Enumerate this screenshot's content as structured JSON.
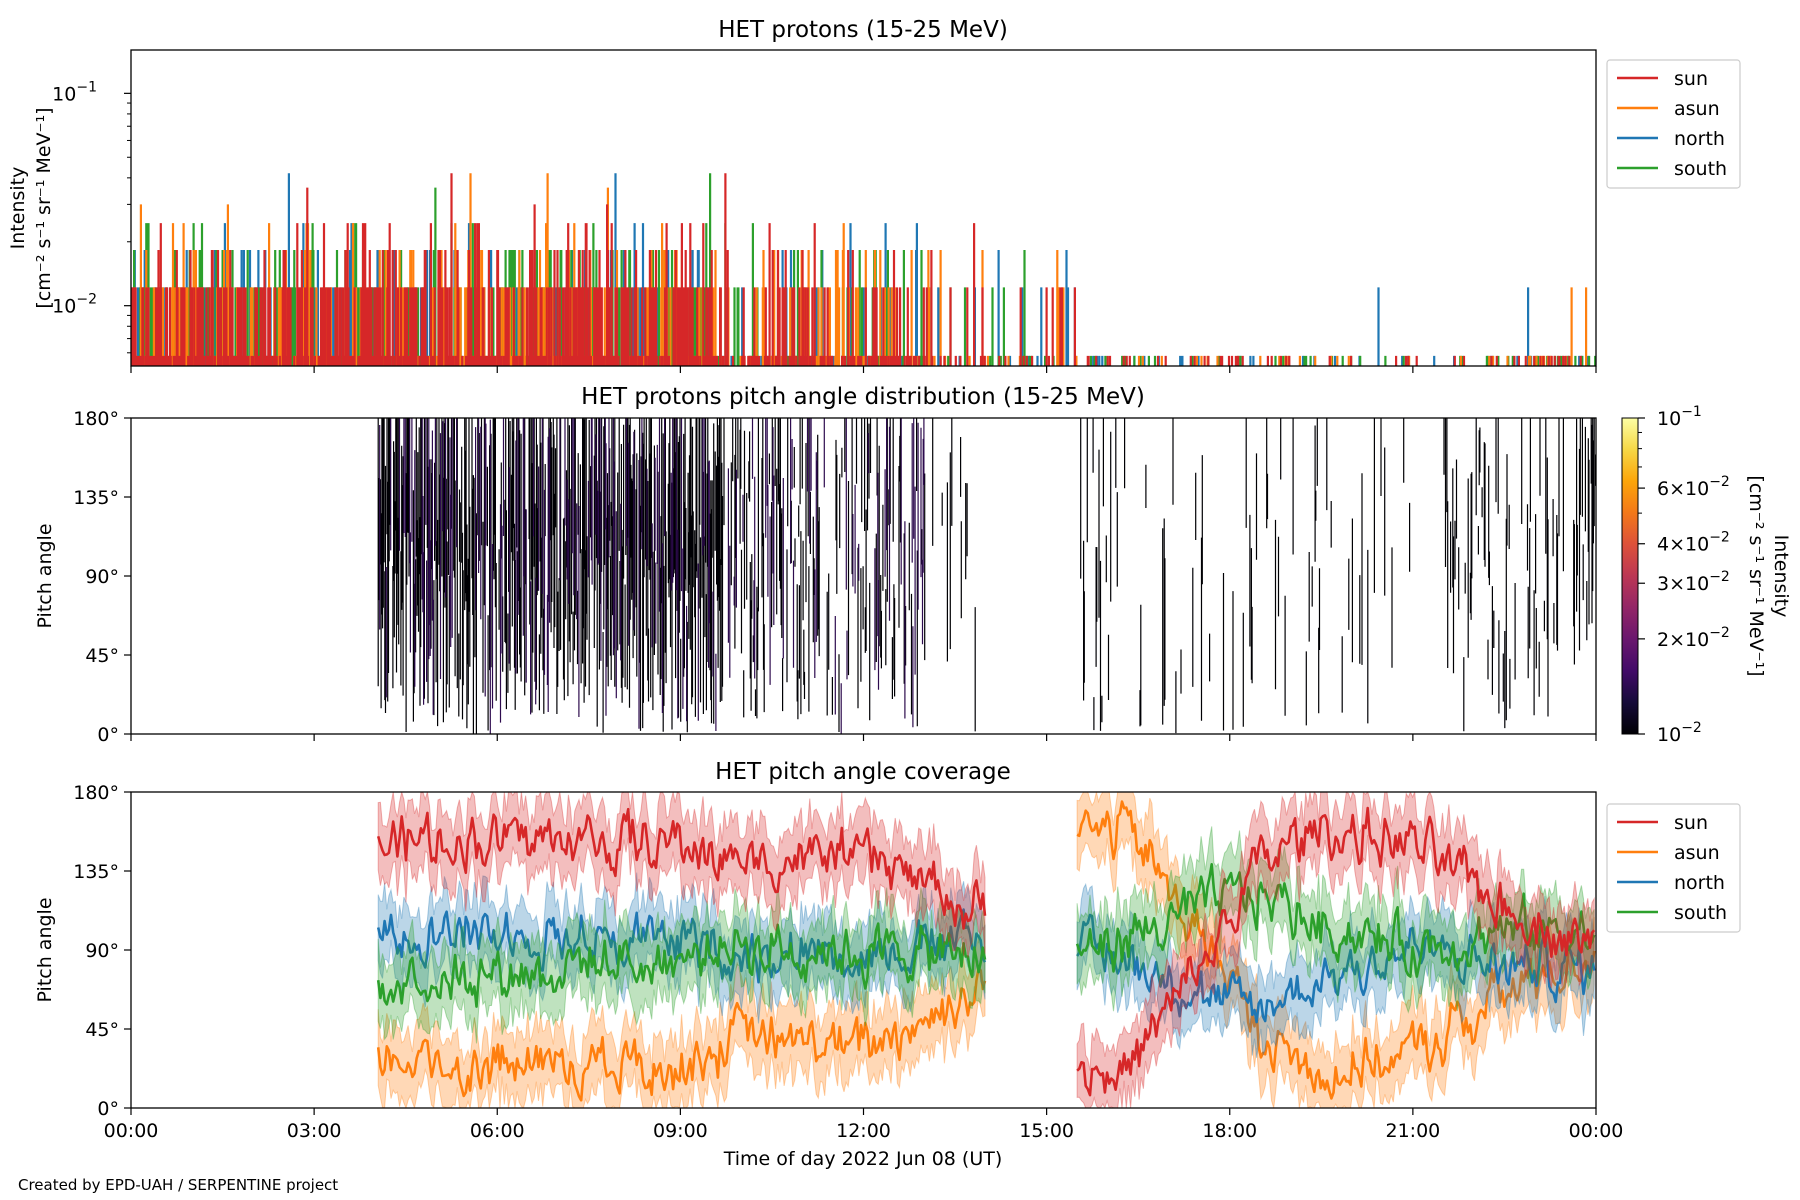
{
  "credit": "Created by EPD-UAH / SERPENTINE project",
  "chart_data": [
    {
      "type": "line",
      "title": "HET protons (15-25 MeV)",
      "ylabel_line1": "Intensity",
      "ylabel_line2": "[cm⁻² s⁻¹ sr⁻¹ MeV⁻¹]",
      "yscale": "log",
      "ylim": [
        0.0052,
        0.16
      ],
      "yticks": [
        {
          "value": 0.1,
          "mantissa": "10",
          "exponent": "−1"
        },
        {
          "value": 0.01,
          "mantissa": "10",
          "exponent": "−2"
        }
      ],
      "xlim_hours": [
        0,
        24
      ],
      "legend_position": "upper right, outside",
      "series": [
        {
          "name": "sun",
          "color": "#d62728"
        },
        {
          "name": "asun",
          "color": "#ff7f0e"
        },
        {
          "name": "north",
          "color": "#1f77b4"
        },
        {
          "name": "south",
          "color": "#2ca02c"
        }
      ],
      "count_levels": [
        0.0058,
        0.0122,
        0.0183,
        0.0245,
        0.03,
        0.036,
        0.042
      ],
      "notes": "Sparse single-count spikes; frequent before ~13:00 UT, sparse after"
    },
    {
      "type": "heatmap",
      "title": "HET protons pitch angle distribution (15-25 MeV)",
      "ylabel": "Pitch angle",
      "ylim": [
        0,
        180
      ],
      "yticks": [
        "0°",
        "45°",
        "90°",
        "135°",
        "180°"
      ],
      "colorbar": {
        "scale": "log",
        "range": [
          0.01,
          0.1
        ],
        "cmap": "inferno",
        "label_line1": "Intensity",
        "label_line2": "[cm⁻² s⁻¹ sr⁻¹ MeV⁻¹]",
        "ticks": [
          {
            "value": 0.1,
            "mantissa": "10",
            "exponent": "−1"
          },
          {
            "value": 0.06,
            "mantissa": "6×10",
            "exponent": "−2"
          },
          {
            "value": 0.04,
            "mantissa": "4×10",
            "exponent": "−2"
          },
          {
            "value": 0.03,
            "mantissa": "3×10",
            "exponent": "−2"
          },
          {
            "value": 0.02,
            "mantissa": "2×10",
            "exponent": "−2"
          },
          {
            "value": 0.01,
            "mantissa": "10",
            "exponent": "−2"
          }
        ]
      },
      "data_windows_hours": [
        [
          4.05,
          14.0
        ],
        [
          15.5,
          24.0
        ]
      ]
    },
    {
      "type": "line",
      "title": "HET pitch angle coverage",
      "ylabel": "Pitch angle",
      "ylim": [
        0,
        180
      ],
      "yticks": [
        "0°",
        "45°",
        "90°",
        "135°",
        "180°"
      ],
      "xlabel": "Time of day 2022 Jun 08 (UT)",
      "xlim_hours": [
        0,
        24
      ],
      "xticks": [
        "00:00",
        "03:00",
        "06:00",
        "09:00",
        "12:00",
        "15:00",
        "18:00",
        "21:00",
        "00:00"
      ],
      "data_gap_hours": [
        14.0,
        15.5
      ],
      "legend_position": "upper right, outside",
      "series": [
        {
          "name": "sun",
          "color": "#d62728",
          "keypoints": [
            [
              4.05,
              150
            ],
            [
              6,
              155
            ],
            [
              9,
              150
            ],
            [
              10,
              140
            ],
            [
              12,
              145
            ],
            [
              14,
              110
            ],
            [
              15.5,
              25
            ],
            [
              16.3,
              20
            ],
            [
              17,
              55
            ],
            [
              17.8,
              95
            ],
            [
              18.5,
              140
            ],
            [
              19.5,
              160
            ],
            [
              21,
              150
            ],
            [
              22.5,
              115
            ],
            [
              24,
              90
            ]
          ]
        },
        {
          "name": "asun",
          "color": "#ff7f0e",
          "keypoints": [
            [
              4.05,
              28
            ],
            [
              6,
              25
            ],
            [
              9,
              25
            ],
            [
              10,
              40
            ],
            [
              12,
              35
            ],
            [
              14,
              70
            ],
            [
              15.5,
              155
            ],
            [
              16.3,
              160
            ],
            [
              17,
              125
            ],
            [
              17.8,
              85
            ],
            [
              18.5,
              40
            ],
            [
              19.5,
              20
            ],
            [
              21,
              30
            ],
            [
              22.5,
              65
            ],
            [
              24,
              90
            ]
          ]
        },
        {
          "name": "north",
          "color": "#1f77b4",
          "keypoints": [
            [
              4.05,
              105
            ],
            [
              6,
              100
            ],
            [
              9,
              95
            ],
            [
              10,
              88
            ],
            [
              12,
              90
            ],
            [
              14,
              95
            ],
            [
              15.5,
              90
            ],
            [
              16.3,
              85
            ],
            [
              17,
              75
            ],
            [
              17.8,
              60
            ],
            [
              18.5,
              55
            ],
            [
              19.5,
              75
            ],
            [
              21,
              90
            ],
            [
              22.5,
              80
            ],
            [
              24,
              80
            ]
          ]
        },
        {
          "name": "south",
          "color": "#2ca02c",
          "keypoints": [
            [
              4.05,
              75
            ],
            [
              6,
              78
            ],
            [
              9,
              85
            ],
            [
              10,
              92
            ],
            [
              12,
              90
            ],
            [
              14,
              85
            ],
            [
              15.5,
              90
            ],
            [
              16.3,
              95
            ],
            [
              17,
              105
            ],
            [
              17.8,
              118
            ],
            [
              18.5,
              122
            ],
            [
              19.5,
              105
            ],
            [
              21,
              90
            ],
            [
              22.5,
              100
            ],
            [
              24,
              100
            ]
          ]
        }
      ]
    }
  ]
}
